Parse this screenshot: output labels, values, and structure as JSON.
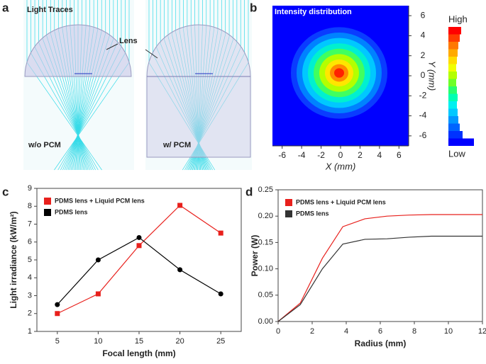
{
  "panel_labels": [
    "a",
    "b",
    "c",
    "d"
  ],
  "illustration": {
    "title": "Light Traces",
    "lens_label": "Lens",
    "left_label": "w/o PCM",
    "right_label": "w/ PCM"
  },
  "chart_data": [
    {
      "type": "heatmap",
      "title": "Intensity distribution",
      "xlabel": "X (mm)",
      "ylabel": "Y (mm)",
      "xlim": [
        -7,
        7
      ],
      "ylim": [
        -7,
        7
      ],
      "xticks": [
        -6,
        -4,
        -2,
        0,
        2,
        4,
        6
      ],
      "yticks": [
        -6,
        -4,
        -2,
        0,
        2,
        4,
        6
      ],
      "colorbar_labels": [
        "High",
        "Low"
      ]
    },
    {
      "type": "line",
      "xlabel": "Focal length (mm)",
      "ylabel": "Light irradiance (kW/m²)",
      "x": [
        5,
        10,
        15,
        20,
        25
      ],
      "xlim": [
        2.5,
        27.5
      ],
      "xticks": [
        5,
        10,
        15,
        20,
        25
      ],
      "ylim": [
        1,
        9
      ],
      "yticks": [
        1,
        2,
        3,
        4,
        5,
        6,
        7,
        8,
        9
      ],
      "legend": "upper left",
      "series": [
        {
          "name": "PDMS lens + Liquid PCM lens",
          "color": "#e8201c",
          "marker": "square",
          "values": [
            2.0,
            3.1,
            5.8,
            8.05,
            6.5
          ]
        },
        {
          "name": "PDMS lens",
          "color": "#000000",
          "marker": "circle",
          "values": [
            2.5,
            5.0,
            6.25,
            4.45,
            3.1
          ]
        }
      ]
    },
    {
      "type": "line",
      "xlabel": "Radius (mm)",
      "ylabel": "Power (W)",
      "x": [
        0,
        1.3,
        2.6,
        3.8,
        5.1,
        6.4,
        7.7,
        9,
        10.3,
        11.5,
        12
      ],
      "xlim": [
        0,
        12
      ],
      "xticks": [
        0,
        2,
        4,
        6,
        8,
        10,
        12
      ],
      "ylim": [
        0,
        0.25
      ],
      "yticks": [
        {
          "value": 0,
          "label": "0.00"
        },
        0.05,
        {
          "value": 0.1,
          "label": "0.10"
        },
        0.15,
        {
          "value": 0.2,
          "label": "0.20"
        },
        0.25
      ],
      "legend": "upper left",
      "series": [
        {
          "name": "PDMS lens + Liquid PCM lens",
          "color": "#e8201c",
          "marker": "none",
          "values": [
            0,
            0.035,
            0.12,
            0.18,
            0.195,
            0.2,
            0.202,
            0.203,
            0.203,
            0.203,
            0.203
          ]
        },
        {
          "name": "PDMS lens",
          "color": "#333333",
          "marker": "none",
          "values": [
            0,
            0.032,
            0.1,
            0.147,
            0.156,
            0.157,
            0.16,
            0.162,
            0.162,
            0.162,
            0.162
          ]
        }
      ]
    }
  ]
}
